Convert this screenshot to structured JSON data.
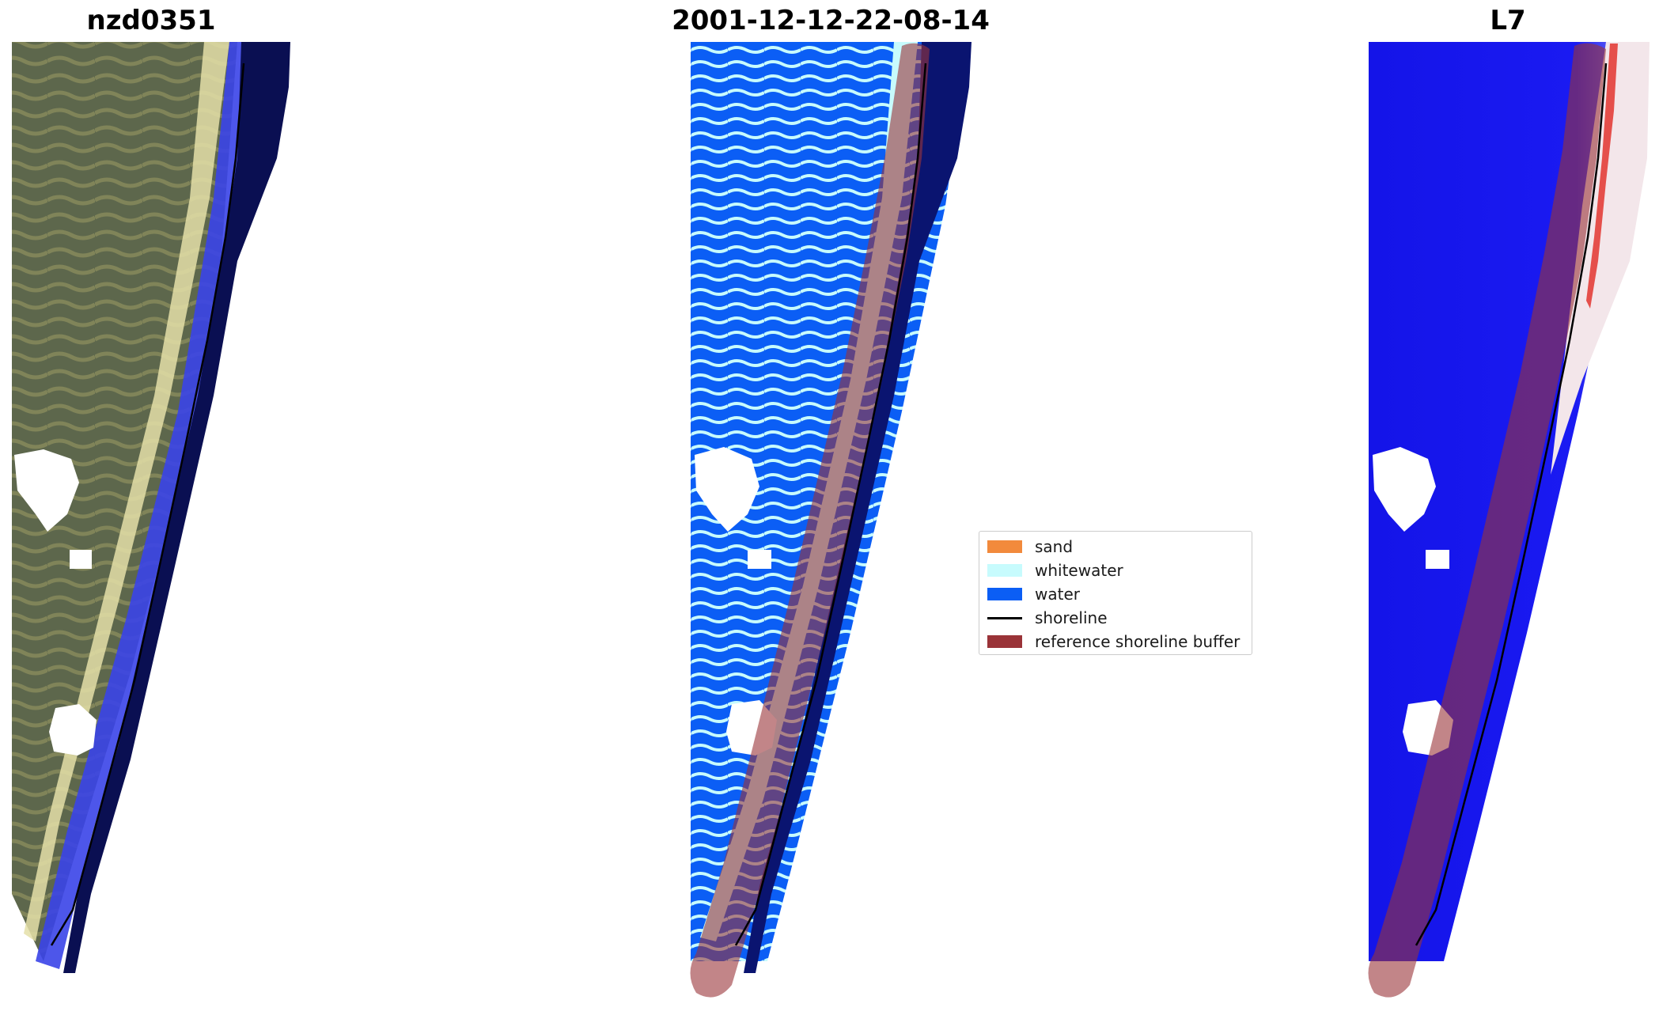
{
  "panels": [
    {
      "title": "nzd0351"
    },
    {
      "title": "2001-12-12-22-08-14"
    },
    {
      "title": "L7"
    }
  ],
  "legend": {
    "items": [
      {
        "label": "sand",
        "kind": "patch",
        "color": "#f28a3c"
      },
      {
        "label": "whitewater",
        "kind": "patch",
        "color": "#c7fbfd"
      },
      {
        "label": "water",
        "kind": "patch",
        "color": "#0b5ef5"
      },
      {
        "label": "shoreline",
        "kind": "line",
        "color": "#000000"
      },
      {
        "label": "reference shoreline buffer",
        "kind": "patch",
        "color": "#9a3338"
      }
    ]
  },
  "colors": {
    "rgb_sea": "#5f6a4e",
    "rgb_sand": "#d9d39c",
    "classified_water": "#0b5ef5",
    "classified_whitewater": "#c7fbfd",
    "buffer_overlay": "#9a3338",
    "mndwi_water": "#1010f0",
    "mndwi_land": "#e2342f"
  }
}
